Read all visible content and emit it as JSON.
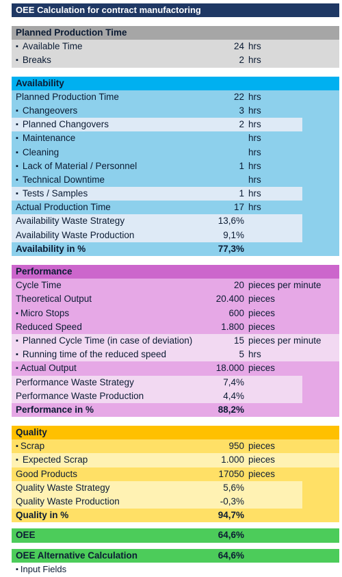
{
  "title": "OEE Calculation for contract manufactoring",
  "colors": {
    "title_bg": "#1f3864",
    "planned_hdr": "#a6a6a6",
    "planned_row": "#d9d9d9",
    "availability_hdr": "#00b0f0",
    "availability_row": "#8dd0ec",
    "availability_light": "#deeaf6",
    "performance_hdr": "#cc66cc",
    "performance_row": "#e6a8e6",
    "performance_light": "#f2d9f2",
    "quality_hdr": "#ffc000",
    "quality_row": "#ffe066",
    "quality_light": "#fff2b3",
    "oee": "#4ccc5a"
  },
  "planned": {
    "header": "Planned Production Time",
    "rows": [
      {
        "label": "Available Time",
        "value": "24",
        "unit": "hrs"
      },
      {
        "label": "Breaks",
        "value": "2",
        "unit": "hrs"
      }
    ]
  },
  "availability": {
    "header": "Availability",
    "rows": [
      {
        "label": "Planned Production Time",
        "value": "22",
        "unit": "hrs"
      },
      {
        "label": "Changeovers",
        "value": "3",
        "unit": "hrs"
      },
      {
        "label": "Planned Changovers",
        "value": "2",
        "unit": "hrs"
      },
      {
        "label": "Maintenance",
        "value": "",
        "unit": "hrs"
      },
      {
        "label": "Cleaning",
        "value": "",
        "unit": "hrs"
      },
      {
        "label": "Lack of Material / Personnel",
        "value": "1",
        "unit": "hrs"
      },
      {
        "label": "Technical Downtime",
        "value": "",
        "unit": "hrs"
      },
      {
        "label": "Tests / Samples",
        "value": "1",
        "unit": "hrs"
      },
      {
        "label": "Actual Production Time",
        "value": "17",
        "unit": "hrs"
      },
      {
        "label": "Availability Waste Strategy",
        "value": "13,6%",
        "unit": ""
      },
      {
        "label": "Availability Waste Production",
        "value": "9,1%",
        "unit": ""
      }
    ],
    "total_label": "Availability in %",
    "total_value": "77,3%"
  },
  "performance": {
    "header": "Performance",
    "rows": [
      {
        "label": "Cycle Time",
        "value": "20",
        "unit": "pieces per minute"
      },
      {
        "label": "Theoretical Output",
        "value": "20.400",
        "unit": "pieces"
      },
      {
        "label": "Micro Stops",
        "value": "600",
        "unit": "pieces"
      },
      {
        "label": "Reduced Speed",
        "value": "1.800",
        "unit": "pieces"
      },
      {
        "label": "Planned Cycle Time (in case of deviation)",
        "value": "15",
        "unit": "pieces per minute"
      },
      {
        "label": "Running time of the reduced speed",
        "value": "5",
        "unit": "hrs"
      },
      {
        "label": "Actual Output",
        "value": "18.000",
        "unit": "pieces"
      },
      {
        "label": "Performance Waste Strategy",
        "value": "7,4%",
        "unit": ""
      },
      {
        "label": "Performance  Waste Production",
        "value": "4,4%",
        "unit": ""
      }
    ],
    "total_label": "Performance in %",
    "total_value": "88,2%"
  },
  "quality": {
    "header": "Quality",
    "rows": [
      {
        "label": "Scrap",
        "value": "950",
        "unit": "pieces"
      },
      {
        "label": "Expected Scrap",
        "value": "1.000",
        "unit": "pieces"
      },
      {
        "label": "Good Products",
        "value": "17050",
        "unit": "pieces"
      },
      {
        "label": "Quality Waste Strategy",
        "value": "5,6%",
        "unit": ""
      },
      {
        "label": "Quality Waste Production",
        "value": "-0,3%",
        "unit": ""
      }
    ],
    "total_label": "Quality in %",
    "total_value": "94,7%"
  },
  "oee": {
    "label": "OEE",
    "value": "64,6%"
  },
  "oee_alt": {
    "label": "OEE Alternative Calculation",
    "value": "64,6%"
  },
  "legend": "Input Fields"
}
